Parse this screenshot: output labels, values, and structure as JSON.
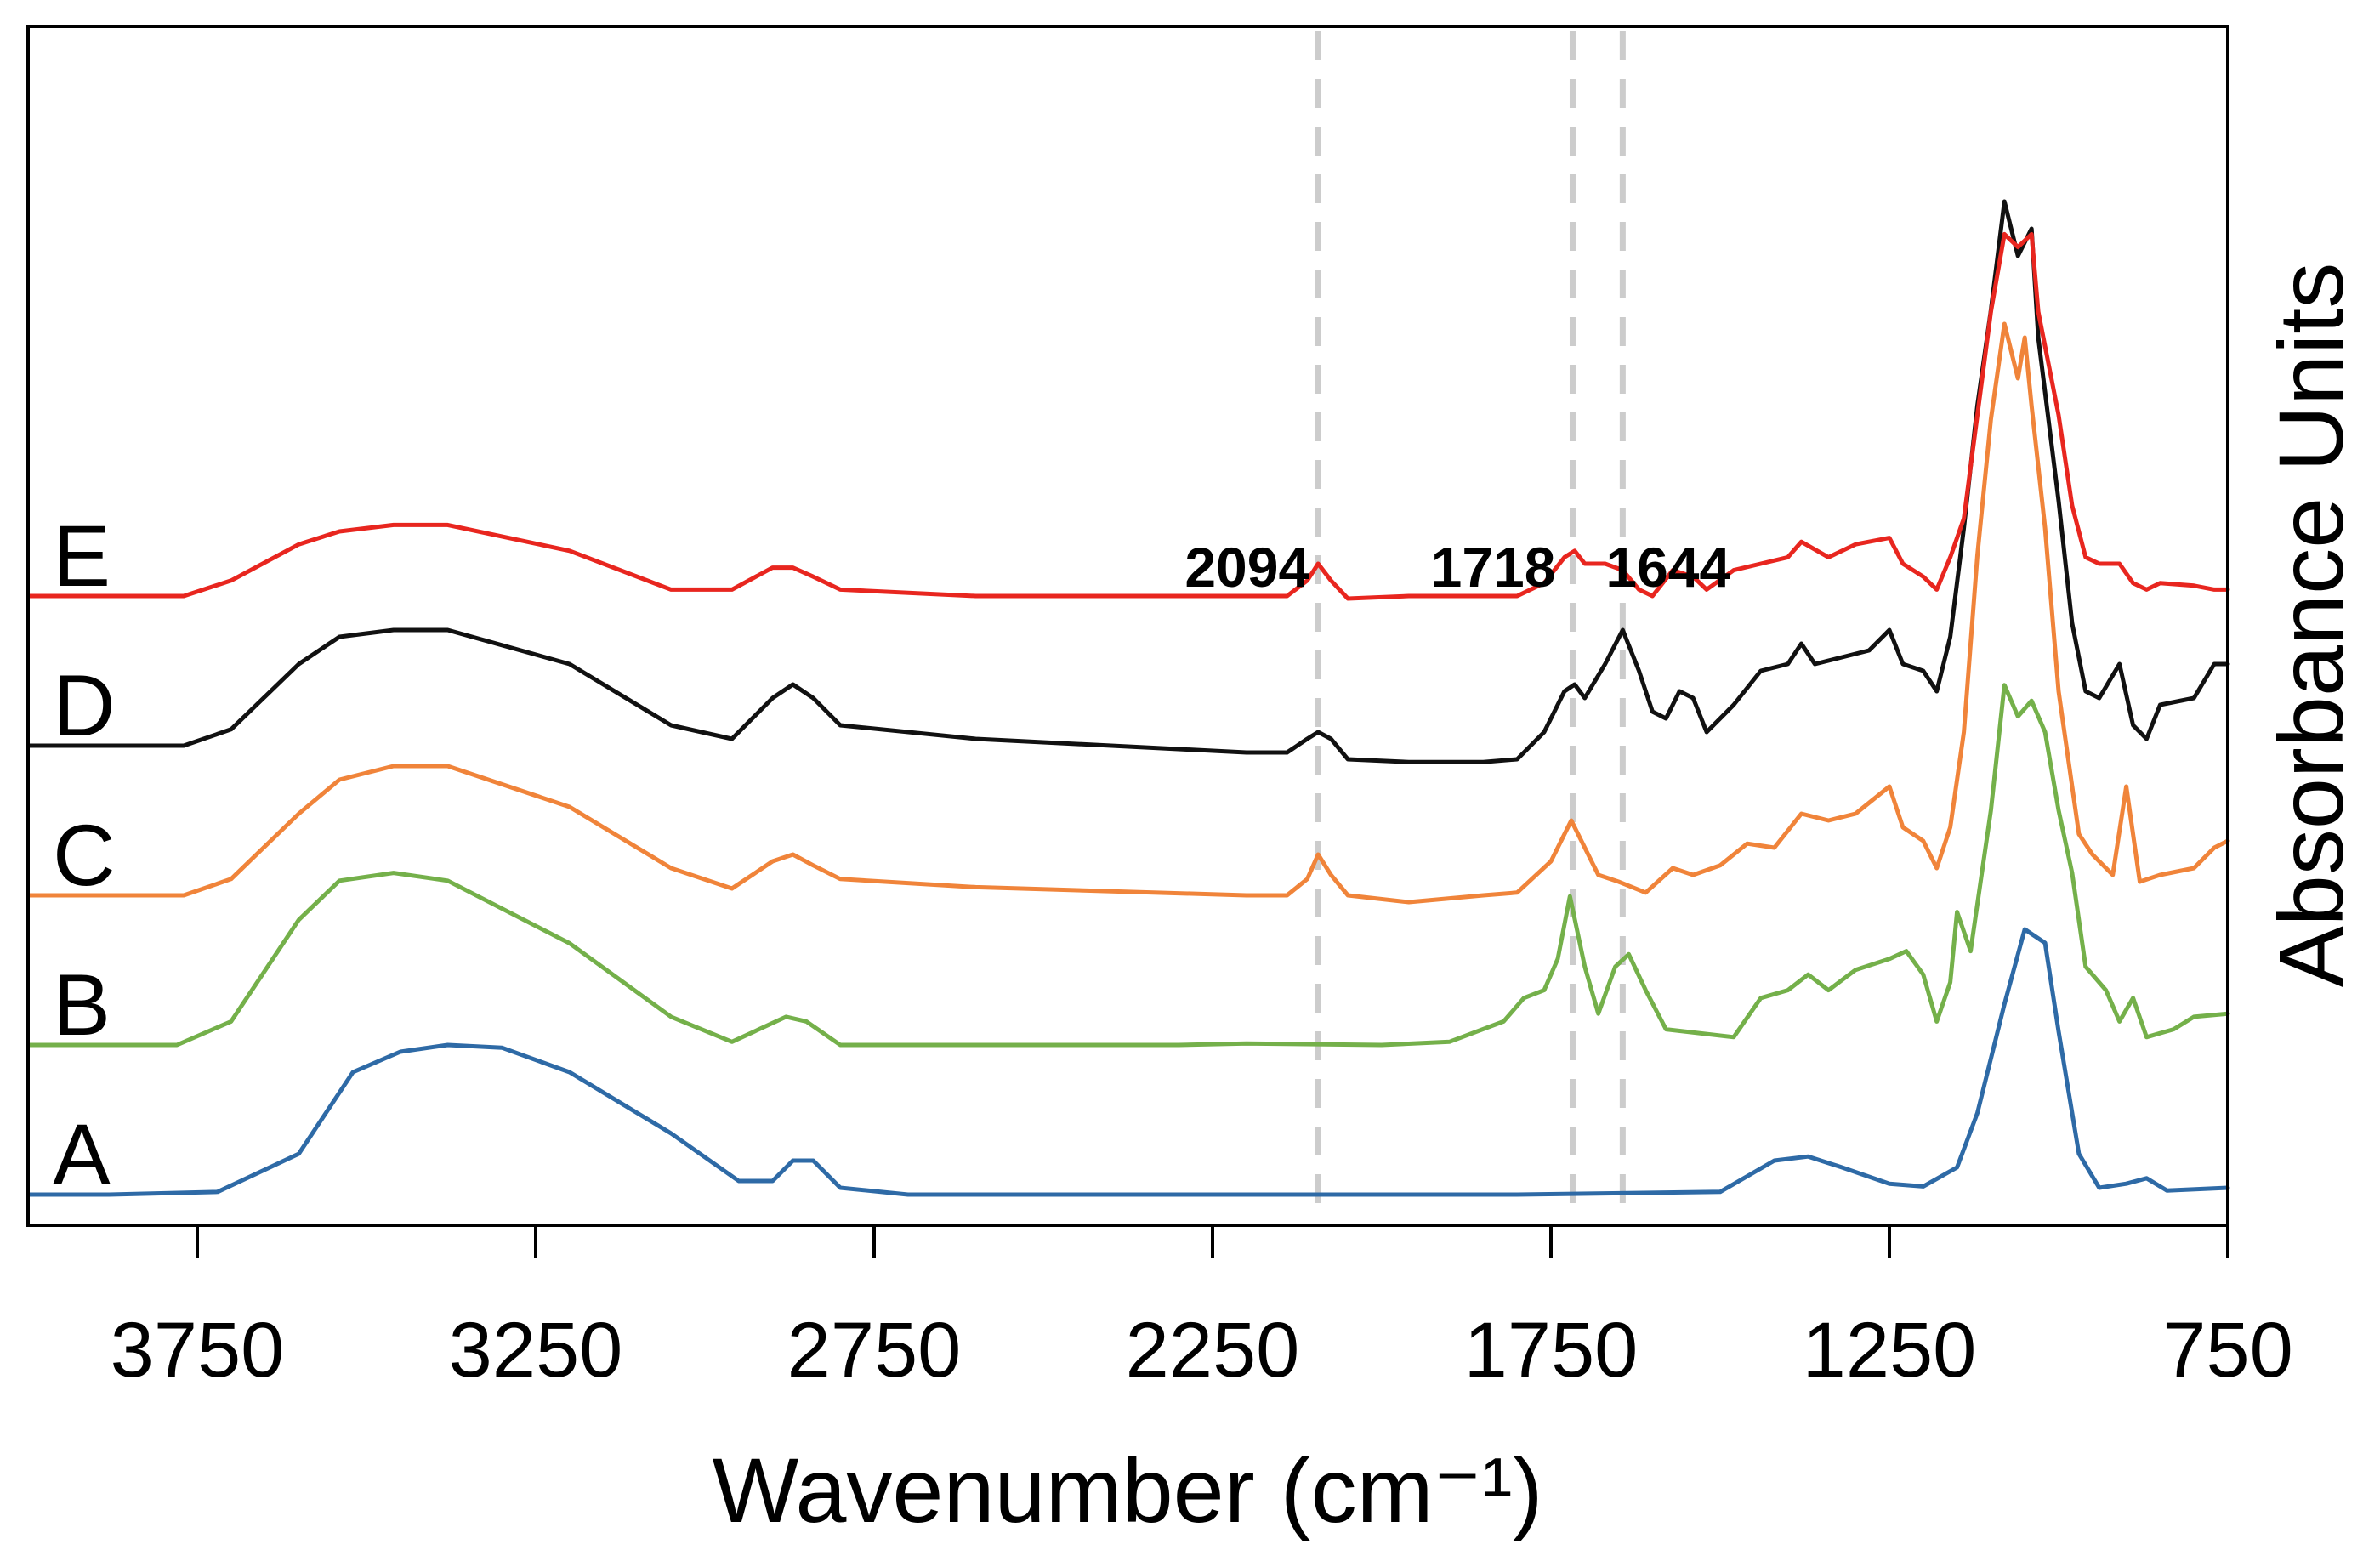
{
  "chart_data": {
    "type": "line",
    "title": "",
    "xlabel": "Wavenumber (cm⁻¹)",
    "ylabel": "Absorbance Units",
    "xlim": [
      4000,
      750
    ],
    "ylim": [
      0,
      10
    ],
    "x_reversed": true,
    "x_ticks": [
      3750,
      3250,
      2750,
      2250,
      1750,
      1250,
      750
    ],
    "grid": false,
    "reference_lines": [
      {
        "x": 2094,
        "label": "2094"
      },
      {
        "x": 1718,
        "label": "1718"
      },
      {
        "x": 1644,
        "label": "1644"
      }
    ],
    "series": [
      {
        "name": "A",
        "color": "#2e6aa6",
        "offset": 0.0,
        "scale": 1.0,
        "points": [
          [
            4000,
            0.0
          ],
          [
            3880,
            0.0
          ],
          [
            3720,
            0.02
          ],
          [
            3600,
            0.3
          ],
          [
            3520,
            0.9
          ],
          [
            3450,
            1.05
          ],
          [
            3380,
            1.1
          ],
          [
            3300,
            1.08
          ],
          [
            3200,
            0.9
          ],
          [
            3050,
            0.45
          ],
          [
            2950,
            0.1
          ],
          [
            2900,
            0.1
          ],
          [
            2870,
            0.25
          ],
          [
            2840,
            0.25
          ],
          [
            2800,
            0.05
          ],
          [
            2700,
            0.0
          ],
          [
            2300,
            0.0
          ],
          [
            1800,
            0.0
          ],
          [
            1500,
            0.02
          ],
          [
            1420,
            0.25
          ],
          [
            1370,
            0.28
          ],
          [
            1320,
            0.2
          ],
          [
            1250,
            0.08
          ],
          [
            1200,
            0.06
          ],
          [
            1150,
            0.2
          ],
          [
            1120,
            0.6
          ],
          [
            1080,
            1.4
          ],
          [
            1050,
            1.95
          ],
          [
            1020,
            1.85
          ],
          [
            1000,
            1.2
          ],
          [
            970,
            0.3
          ],
          [
            940,
            0.05
          ],
          [
            900,
            0.08
          ],
          [
            870,
            0.12
          ],
          [
            840,
            0.03
          ],
          [
            750,
            0.05
          ]
        ]
      },
      {
        "name": "B",
        "color": "#74b04a",
        "offset": 1.1,
        "scale": 1.15,
        "points": [
          [
            4000,
            0.0
          ],
          [
            3780,
            0.0
          ],
          [
            3700,
            0.15
          ],
          [
            3600,
            0.8
          ],
          [
            3540,
            1.05
          ],
          [
            3460,
            1.1
          ],
          [
            3380,
            1.05
          ],
          [
            3200,
            0.65
          ],
          [
            3050,
            0.18
          ],
          [
            2960,
            0.02
          ],
          [
            2880,
            0.18
          ],
          [
            2850,
            0.15
          ],
          [
            2800,
            0.0
          ],
          [
            2300,
            0.0
          ],
          [
            2200,
            0.01
          ],
          [
            2000,
            0.0
          ],
          [
            1900,
            0.02
          ],
          [
            1820,
            0.15
          ],
          [
            1790,
            0.3
          ],
          [
            1760,
            0.35
          ],
          [
            1740,
            0.55
          ],
          [
            1722,
            0.95
          ],
          [
            1700,
            0.5
          ],
          [
            1680,
            0.2
          ],
          [
            1655,
            0.5
          ],
          [
            1635,
            0.58
          ],
          [
            1610,
            0.35
          ],
          [
            1580,
            0.1
          ],
          [
            1480,
            0.05
          ],
          [
            1440,
            0.3
          ],
          [
            1400,
            0.35
          ],
          [
            1370,
            0.45
          ],
          [
            1340,
            0.35
          ],
          [
            1300,
            0.48
          ],
          [
            1250,
            0.55
          ],
          [
            1225,
            0.6
          ],
          [
            1200,
            0.45
          ],
          [
            1180,
            0.15
          ],
          [
            1160,
            0.4
          ],
          [
            1150,
            0.85
          ],
          [
            1130,
            0.6
          ],
          [
            1100,
            1.5
          ],
          [
            1080,
            2.3
          ],
          [
            1060,
            2.1
          ],
          [
            1040,
            2.2
          ],
          [
            1020,
            2.0
          ],
          [
            1000,
            1.5
          ],
          [
            980,
            1.1
          ],
          [
            960,
            0.5
          ],
          [
            930,
            0.35
          ],
          [
            910,
            0.15
          ],
          [
            890,
            0.3
          ],
          [
            870,
            0.05
          ],
          [
            830,
            0.1
          ],
          [
            800,
            0.18
          ],
          [
            750,
            0.2
          ]
        ]
      },
      {
        "name": "C",
        "color": "#f0843a",
        "offset": 2.2,
        "scale": 1.0,
        "points": [
          [
            4000,
            0.0
          ],
          [
            3770,
            0.0
          ],
          [
            3700,
            0.12
          ],
          [
            3600,
            0.6
          ],
          [
            3540,
            0.85
          ],
          [
            3460,
            0.95
          ],
          [
            3380,
            0.95
          ],
          [
            3200,
            0.65
          ],
          [
            3050,
            0.2
          ],
          [
            2960,
            0.05
          ],
          [
            2900,
            0.25
          ],
          [
            2870,
            0.3
          ],
          [
            2840,
            0.22
          ],
          [
            2800,
            0.12
          ],
          [
            2600,
            0.06
          ],
          [
            2200,
            0.0
          ],
          [
            2140,
            0.0
          ],
          [
            2110,
            0.12
          ],
          [
            2094,
            0.3
          ],
          [
            2075,
            0.15
          ],
          [
            2050,
            0.0
          ],
          [
            1960,
            -0.05
          ],
          [
            1850,
            0.0
          ],
          [
            1800,
            0.02
          ],
          [
            1750,
            0.25
          ],
          [
            1720,
            0.55
          ],
          [
            1700,
            0.35
          ],
          [
            1680,
            0.15
          ],
          [
            1650,
            0.1
          ],
          [
            1610,
            0.02
          ],
          [
            1570,
            0.2
          ],
          [
            1540,
            0.15
          ],
          [
            1500,
            0.22
          ],
          [
            1460,
            0.38
          ],
          [
            1420,
            0.35
          ],
          [
            1380,
            0.6
          ],
          [
            1340,
            0.55
          ],
          [
            1300,
            0.6
          ],
          [
            1250,
            0.8
          ],
          [
            1230,
            0.5
          ],
          [
            1200,
            0.4
          ],
          [
            1180,
            0.2
          ],
          [
            1160,
            0.5
          ],
          [
            1140,
            1.2
          ],
          [
            1120,
            2.5
          ],
          [
            1100,
            3.5
          ],
          [
            1080,
            4.2
          ],
          [
            1060,
            3.8
          ],
          [
            1050,
            4.1
          ],
          [
            1040,
            3.6
          ],
          [
            1020,
            2.7
          ],
          [
            1000,
            1.5
          ],
          [
            970,
            0.45
          ],
          [
            950,
            0.3
          ],
          [
            920,
            0.15
          ],
          [
            900,
            0.8
          ],
          [
            880,
            0.1
          ],
          [
            850,
            0.15
          ],
          [
            800,
            0.2
          ],
          [
            770,
            0.35
          ],
          [
            750,
            0.4
          ]
        ]
      },
      {
        "name": "D",
        "color": "#111111",
        "offset": 3.3,
        "scale": 1.0,
        "points": [
          [
            4000,
            0.0
          ],
          [
            3770,
            0.0
          ],
          [
            3700,
            0.12
          ],
          [
            3600,
            0.6
          ],
          [
            3540,
            0.8
          ],
          [
            3460,
            0.85
          ],
          [
            3380,
            0.85
          ],
          [
            3200,
            0.6
          ],
          [
            3050,
            0.15
          ],
          [
            2960,
            0.05
          ],
          [
            2900,
            0.35
          ],
          [
            2870,
            0.45
          ],
          [
            2840,
            0.35
          ],
          [
            2800,
            0.15
          ],
          [
            2600,
            0.05
          ],
          [
            2200,
            -0.05
          ],
          [
            2140,
            -0.05
          ],
          [
            2110,
            0.05
          ],
          [
            2094,
            0.1
          ],
          [
            2075,
            0.05
          ],
          [
            2050,
            -0.1
          ],
          [
            1960,
            -0.12
          ],
          [
            1850,
            -0.12
          ],
          [
            1800,
            -0.1
          ],
          [
            1760,
            0.1
          ],
          [
            1730,
            0.4
          ],
          [
            1715,
            0.45
          ],
          [
            1700,
            0.35
          ],
          [
            1670,
            0.6
          ],
          [
            1644,
            0.85
          ],
          [
            1620,
            0.55
          ],
          [
            1600,
            0.25
          ],
          [
            1580,
            0.2
          ],
          [
            1560,
            0.4
          ],
          [
            1540,
            0.35
          ],
          [
            1520,
            0.1
          ],
          [
            1480,
            0.3
          ],
          [
            1440,
            0.55
          ],
          [
            1400,
            0.6
          ],
          [
            1380,
            0.75
          ],
          [
            1360,
            0.6
          ],
          [
            1320,
            0.65
          ],
          [
            1280,
            0.7
          ],
          [
            1250,
            0.85
          ],
          [
            1230,
            0.6
          ],
          [
            1200,
            0.55
          ],
          [
            1180,
            0.4
          ],
          [
            1160,
            0.8
          ],
          [
            1140,
            1.6
          ],
          [
            1120,
            2.5
          ],
          [
            1100,
            3.2
          ],
          [
            1080,
            4.0
          ],
          [
            1060,
            3.6
          ],
          [
            1040,
            3.8
          ],
          [
            1030,
            3.0
          ],
          [
            1000,
            1.8
          ],
          [
            980,
            0.9
          ],
          [
            960,
            0.4
          ],
          [
            940,
            0.35
          ],
          [
            910,
            0.6
          ],
          [
            890,
            0.15
          ],
          [
            870,
            0.05
          ],
          [
            850,
            0.3
          ],
          [
            800,
            0.35
          ],
          [
            770,
            0.6
          ],
          [
            750,
            0.6
          ]
        ]
      },
      {
        "name": "E",
        "color": "#e8261f",
        "offset": 4.4,
        "scale": 0.95,
        "points": [
          [
            4000,
            0.0
          ],
          [
            3770,
            0.0
          ],
          [
            3700,
            0.12
          ],
          [
            3600,
            0.4
          ],
          [
            3540,
            0.5
          ],
          [
            3460,
            0.55
          ],
          [
            3380,
            0.55
          ],
          [
            3200,
            0.35
          ],
          [
            3050,
            0.05
          ],
          [
            2960,
            0.05
          ],
          [
            2900,
            0.22
          ],
          [
            2870,
            0.22
          ],
          [
            2840,
            0.15
          ],
          [
            2800,
            0.05
          ],
          [
            2600,
            0.0
          ],
          [
            2200,
            0.0
          ],
          [
            2140,
            0.0
          ],
          [
            2110,
            0.12
          ],
          [
            2094,
            0.25
          ],
          [
            2075,
            0.12
          ],
          [
            2050,
            -0.02
          ],
          [
            1960,
            0.0
          ],
          [
            1850,
            0.0
          ],
          [
            1800,
            0.0
          ],
          [
            1760,
            0.1
          ],
          [
            1730,
            0.3
          ],
          [
            1715,
            0.35
          ],
          [
            1700,
            0.25
          ],
          [
            1670,
            0.25
          ],
          [
            1644,
            0.2
          ],
          [
            1620,
            0.05
          ],
          [
            1600,
            0.0
          ],
          [
            1570,
            0.2
          ],
          [
            1540,
            0.15
          ],
          [
            1520,
            0.05
          ],
          [
            1480,
            0.2
          ],
          [
            1440,
            0.25
          ],
          [
            1400,
            0.3
          ],
          [
            1380,
            0.42
          ],
          [
            1340,
            0.3
          ],
          [
            1300,
            0.4
          ],
          [
            1250,
            0.45
          ],
          [
            1230,
            0.25
          ],
          [
            1200,
            0.15
          ],
          [
            1180,
            0.05
          ],
          [
            1160,
            0.3
          ],
          [
            1140,
            0.6
          ],
          [
            1120,
            1.4
          ],
          [
            1100,
            2.2
          ],
          [
            1080,
            2.8
          ],
          [
            1060,
            2.7
          ],
          [
            1040,
            2.8
          ],
          [
            1030,
            2.2
          ],
          [
            1000,
            1.4
          ],
          [
            980,
            0.7
          ],
          [
            960,
            0.3
          ],
          [
            940,
            0.25
          ],
          [
            910,
            0.25
          ],
          [
            890,
            0.1
          ],
          [
            870,
            0.05
          ],
          [
            850,
            0.1
          ],
          [
            800,
            0.08
          ],
          [
            770,
            0.05
          ],
          [
            750,
            0.05
          ]
        ]
      }
    ]
  }
}
